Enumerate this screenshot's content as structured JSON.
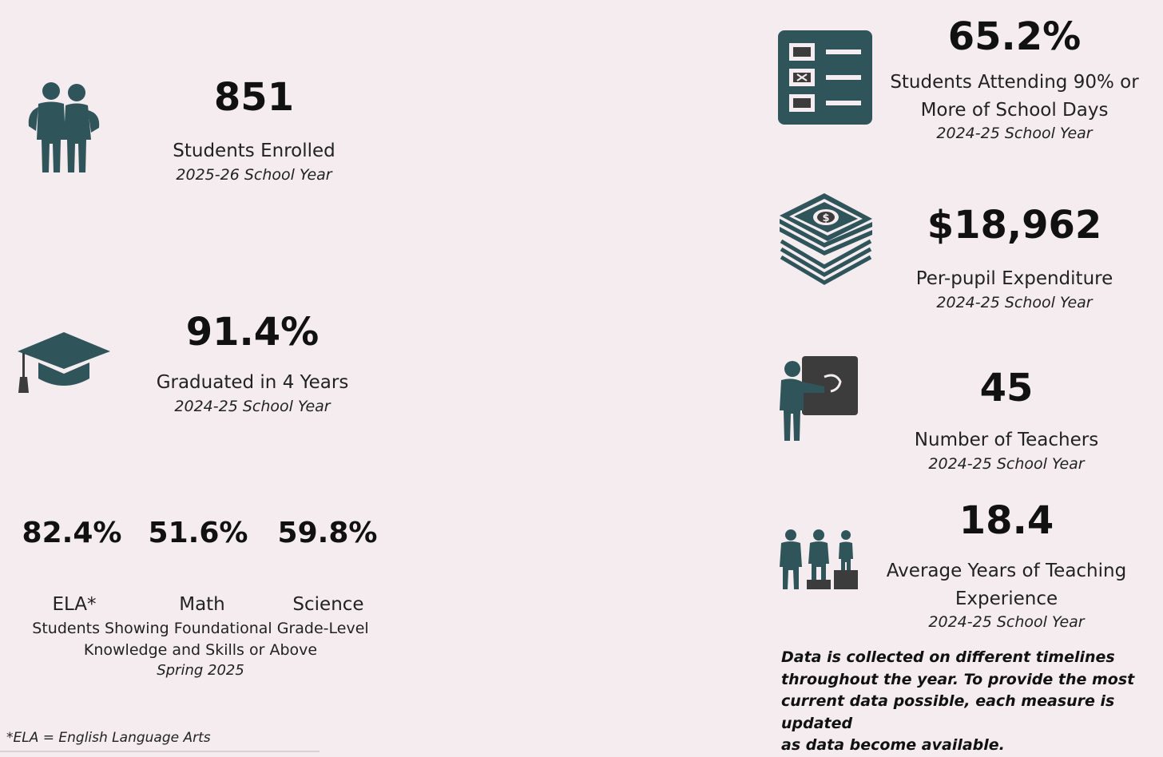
{
  "colors": {
    "icon_teal": "#2f555b",
    "icon_dark": "#3c3c3c",
    "background": "#f4ecef"
  },
  "enrolled": {
    "value": "851",
    "label": "Students Enrolled",
    "year": "2025-26 School Year",
    "icon": "students-icon"
  },
  "graduated": {
    "value": "91.4%",
    "label": "Graduated in 4 Years",
    "year": "2024-25 School Year",
    "icon": "graduation-cap-icon"
  },
  "subjects": {
    "items": [
      {
        "value": "82.4%",
        "label": "ELA*"
      },
      {
        "value": "51.6%",
        "label": "Math"
      },
      {
        "value": "59.8%",
        "label": "Science"
      }
    ],
    "caption_line1": "Students Showing Foundational Grade-Level",
    "caption_line2": "Knowledge and Skills or Above",
    "period": "Spring 2025"
  },
  "footnote": "*ELA = English Language Arts",
  "attendance": {
    "value": "65.2%",
    "label_line1": "Students Attending 90% or",
    "label_line2": "More of School Days",
    "year": "2024-25 School Year",
    "icon": "checklist-icon"
  },
  "expenditure": {
    "value": "$18,962",
    "label": "Per-pupil Expenditure",
    "year": "2024-25 School Year",
    "icon": "money-stack-icon"
  },
  "teachers": {
    "value": "45",
    "label": "Number of Teachers",
    "year": "2024-25 School Year",
    "icon": "teacher-icon"
  },
  "experience": {
    "value": "18.4",
    "label_line1": "Average Years of Teaching",
    "label_line2": "Experience",
    "year": "2024-25 School Year",
    "icon": "experience-podium-icon"
  },
  "note": {
    "line1": "Data is collected on different timelines",
    "line2": "throughout the year. To provide the most",
    "line3": "current data possible, each measure is updated",
    "line4": "as data become available."
  }
}
